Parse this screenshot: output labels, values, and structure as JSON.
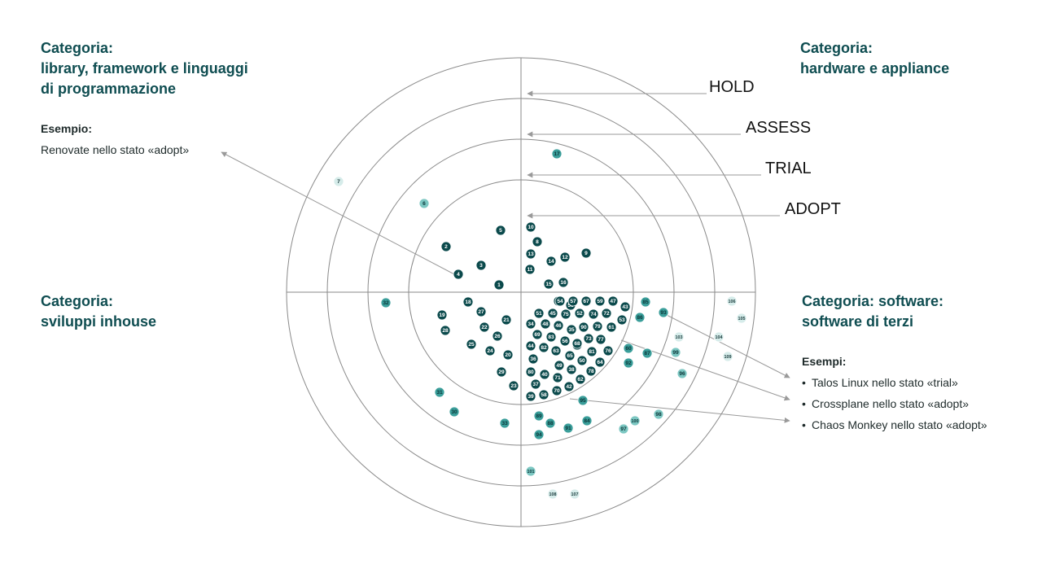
{
  "categories": {
    "top_left": [
      "Categoria:",
      "library, framework e linguaggi",
      "di programmazione"
    ],
    "top_right": [
      "Categoria:",
      "hardware e appliance"
    ],
    "bottom_left": [
      "Categoria:",
      "sviluppi inhouse"
    ],
    "bottom_right": [
      "Categoria: software:",
      "software di terzi"
    ]
  },
  "example_left": {
    "heading": "Esempio:",
    "text": "Renovate nello stato «adopt»"
  },
  "example_right": {
    "heading": "Esempi:",
    "items": [
      "Talos Linux nello stato «trial»",
      "Crossplane nello stato «adopt»",
      "Chaos Monkey nello stato «adopt»"
    ]
  },
  "rings": [
    "ADOPT",
    "TRIAL",
    "ASSESS",
    "HOLD"
  ],
  "colors": {
    "adopt": "#0b4a4c",
    "trial": "#3a9e9a",
    "assess": "#7cc7c2",
    "hold": "#d6ecea",
    "text_dark": "#0f4d51",
    "line": "#9a9a9a"
  },
  "blips": [
    {
      "n": "1",
      "r": "adopt"
    },
    {
      "n": "2",
      "r": "adopt"
    },
    {
      "n": "3",
      "r": "adopt"
    },
    {
      "n": "4",
      "r": "adopt"
    },
    {
      "n": "5",
      "r": "adopt"
    },
    {
      "n": "6",
      "r": "assess"
    },
    {
      "n": "7",
      "r": "hold"
    },
    {
      "n": "8",
      "r": "adopt"
    },
    {
      "n": "9",
      "r": "adopt"
    },
    {
      "n": "10",
      "r": "adopt"
    },
    {
      "n": "11",
      "r": "adopt"
    },
    {
      "n": "12",
      "r": "adopt"
    },
    {
      "n": "13",
      "r": "adopt"
    },
    {
      "n": "14",
      "r": "adopt"
    },
    {
      "n": "15",
      "r": "adopt"
    },
    {
      "n": "16",
      "r": "adopt"
    },
    {
      "n": "17",
      "r": "trial"
    },
    {
      "n": "18",
      "r": "adopt"
    },
    {
      "n": "19",
      "r": "adopt"
    },
    {
      "n": "20",
      "r": "adopt"
    },
    {
      "n": "21",
      "r": "adopt"
    },
    {
      "n": "22",
      "r": "adopt"
    },
    {
      "n": "23",
      "r": "adopt"
    },
    {
      "n": "24",
      "r": "adopt"
    },
    {
      "n": "25",
      "r": "adopt"
    },
    {
      "n": "26",
      "r": "adopt"
    },
    {
      "n": "27",
      "r": "adopt"
    },
    {
      "n": "28",
      "r": "adopt"
    },
    {
      "n": "29",
      "r": "adopt"
    },
    {
      "n": "30",
      "r": "trial"
    },
    {
      "n": "31",
      "r": "trial"
    },
    {
      "n": "32",
      "r": "trial"
    },
    {
      "n": "33",
      "r": "trial"
    },
    {
      "n": "34",
      "r": "adopt"
    },
    {
      "n": "35",
      "r": "adopt"
    },
    {
      "n": "36",
      "r": "adopt"
    },
    {
      "n": "37",
      "r": "adopt"
    },
    {
      "n": "38",
      "r": "adopt"
    },
    {
      "n": "39",
      "r": "adopt"
    },
    {
      "n": "40",
      "r": "adopt"
    },
    {
      "n": "41",
      "r": "adopt"
    },
    {
      "n": "42",
      "r": "adopt"
    },
    {
      "n": "43",
      "r": "adopt"
    },
    {
      "n": "44",
      "r": "adopt"
    },
    {
      "n": "45",
      "r": "adopt"
    },
    {
      "n": "46",
      "r": "adopt"
    },
    {
      "n": "47",
      "r": "adopt"
    },
    {
      "n": "48",
      "r": "adopt"
    },
    {
      "n": "49",
      "r": "adopt"
    },
    {
      "n": "50",
      "r": "adopt"
    },
    {
      "n": "51",
      "r": "adopt"
    },
    {
      "n": "52",
      "r": "adopt"
    },
    {
      "n": "53",
      "r": "adopt"
    },
    {
      "n": "54",
      "r": "adopt"
    },
    {
      "n": "55",
      "r": "adopt"
    },
    {
      "n": "56",
      "r": "adopt"
    },
    {
      "n": "57",
      "r": "adopt"
    },
    {
      "n": "58",
      "r": "adopt"
    },
    {
      "n": "59",
      "r": "adopt"
    },
    {
      "n": "60",
      "r": "trial"
    },
    {
      "n": "61",
      "r": "adopt"
    },
    {
      "n": "62",
      "r": "adopt"
    },
    {
      "n": "63",
      "r": "adopt"
    },
    {
      "n": "64",
      "r": "adopt"
    },
    {
      "n": "65",
      "r": "adopt"
    },
    {
      "n": "66",
      "r": "adopt"
    },
    {
      "n": "67",
      "r": "adopt"
    },
    {
      "n": "68",
      "r": "adopt"
    },
    {
      "n": "69",
      "r": "adopt"
    },
    {
      "n": "70",
      "r": "adopt"
    },
    {
      "n": "71",
      "r": "adopt"
    },
    {
      "n": "72",
      "r": "adopt"
    },
    {
      "n": "73",
      "r": "adopt"
    },
    {
      "n": "74",
      "r": "adopt"
    },
    {
      "n": "75",
      "r": "adopt"
    },
    {
      "n": "76",
      "r": "adopt"
    },
    {
      "n": "77",
      "r": "adopt"
    },
    {
      "n": "78",
      "r": "adopt"
    },
    {
      "n": "79",
      "r": "adopt"
    },
    {
      "n": "80",
      "r": "adopt"
    },
    {
      "n": "81",
      "r": "adopt"
    },
    {
      "n": "82",
      "r": "adopt"
    },
    {
      "n": "83",
      "r": "adopt"
    },
    {
      "n": "84",
      "r": "trial"
    },
    {
      "n": "85",
      "r": "trial"
    },
    {
      "n": "86",
      "r": "trial"
    },
    {
      "n": "87",
      "r": "trial"
    },
    {
      "n": "88",
      "r": "trial"
    },
    {
      "n": "89",
      "r": "trial"
    },
    {
      "n": "90",
      "r": "adopt"
    },
    {
      "n": "91",
      "r": "trial"
    },
    {
      "n": "92",
      "r": "trial"
    },
    {
      "n": "93",
      "r": "trial"
    },
    {
      "n": "94",
      "r": "trial"
    },
    {
      "n": "95",
      "r": "trial"
    },
    {
      "n": "96",
      "r": "assess"
    },
    {
      "n": "97",
      "r": "assess"
    },
    {
      "n": "98",
      "r": "assess"
    },
    {
      "n": "99",
      "r": "assess"
    },
    {
      "n": "100",
      "r": "assess"
    },
    {
      "n": "101",
      "r": "assess"
    },
    {
      "n": "103",
      "r": "hold"
    },
    {
      "n": "104",
      "r": "hold"
    },
    {
      "n": "105",
      "r": "hold"
    },
    {
      "n": "106",
      "r": "hold"
    },
    {
      "n": "107",
      "r": "hold"
    },
    {
      "n": "108",
      "r": "hold"
    },
    {
      "n": "109",
      "r": "hold"
    }
  ]
}
